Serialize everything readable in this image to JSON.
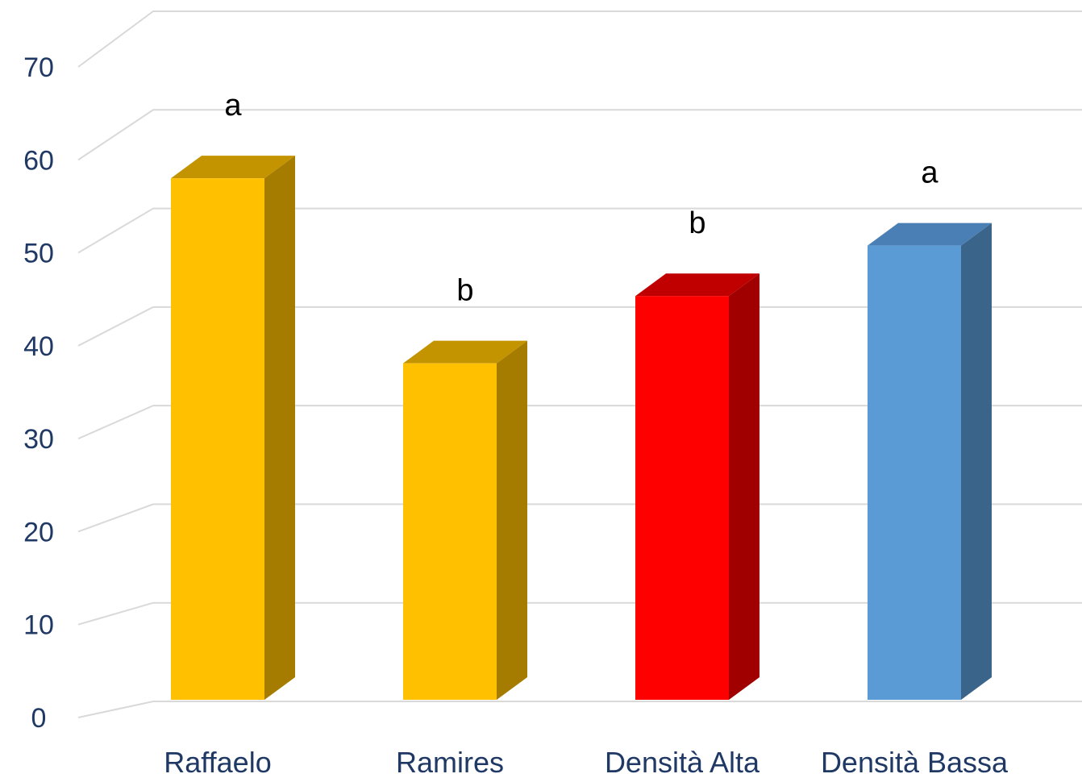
{
  "chart_data": {
    "type": "bar",
    "style": "3d-column",
    "title": "",
    "xlabel": "",
    "ylabel": "",
    "ylim": [
      0,
      70
    ],
    "yticks": [
      0,
      10,
      20,
      30,
      40,
      50,
      60,
      70
    ],
    "grid": true,
    "legend": "none",
    "categories": [
      "Raffaelo",
      "Ramires",
      "Densità Alta",
      "Densità Bassa"
    ],
    "values": [
      62,
      40,
      48,
      54
    ],
    "significance_labels": [
      "a",
      "b",
      "b",
      "a"
    ],
    "colors": {
      "front": [
        "#ffc000",
        "#ffc000",
        "#ff0000",
        "#5b9bd5"
      ],
      "top": [
        "#c49300",
        "#c49300",
        "#c00000",
        "#4a7fb5"
      ],
      "side": [
        "#a67c00",
        "#a67c00",
        "#a00000",
        "#3a6489"
      ],
      "grid": "#d9d9d9",
      "tick_text": "#1f3864",
      "label_text": "#000000"
    }
  }
}
